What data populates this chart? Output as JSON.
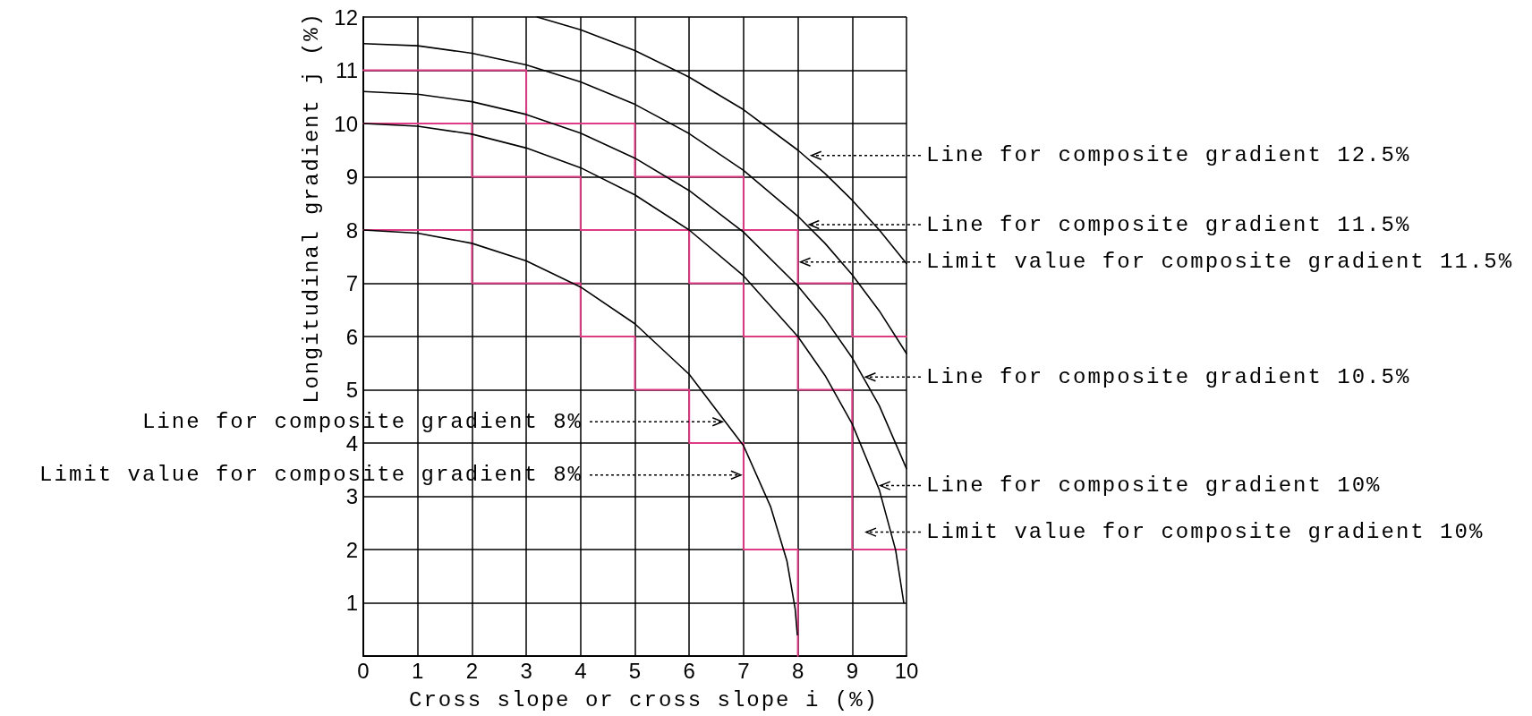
{
  "chart_data": {
    "type": "line",
    "xlabel": "Cross slope or cross slope i (%)",
    "ylabel": "Longitudinal gradient j (%)",
    "xlim": [
      0,
      10
    ],
    "ylim": [
      0,
      12
    ],
    "xticks": [
      0,
      1,
      2,
      3,
      4,
      5,
      6,
      7,
      8,
      9,
      10
    ],
    "yticks": [
      {
        "value": 0,
        "label": null
      },
      1,
      2,
      3,
      4,
      5,
      6,
      7,
      8,
      9,
      10,
      11,
      12
    ],
    "grid": true,
    "series": [
      {
        "color": "#000000",
        "x": [
          3.2,
          4,
          5,
          6,
          7,
          8,
          8.5,
          9,
          9.5,
          10
        ],
        "values": [
          12,
          11.76,
          11.37,
          10.87,
          10.26,
          9.5,
          9.06,
          8.56,
          8.0,
          7.37
        ]
      },
      {
        "color": "#000000",
        "x": [
          0,
          1,
          2,
          3,
          4,
          5,
          6,
          7,
          8,
          8.5,
          9,
          9.5,
          10
        ],
        "values": [
          11.5,
          11.46,
          11.32,
          11.1,
          10.78,
          10.36,
          9.81,
          9.12,
          8.26,
          7.75,
          7.16,
          6.48,
          5.68
        ]
      },
      {
        "color": "#000000",
        "x": [
          0,
          1,
          2,
          3,
          4,
          5,
          6,
          7,
          8,
          8.5,
          9,
          9.5,
          10
        ],
        "values": [
          10.6,
          10.55,
          10.41,
          10.17,
          9.82,
          9.35,
          8.74,
          7.96,
          6.95,
          6.33,
          5.6,
          4.7,
          3.52
        ]
      },
      {
        "color": "#000000",
        "x": [
          0,
          1,
          2,
          3,
          4,
          5,
          6,
          7,
          8,
          8.5,
          9,
          9.5,
          9.8,
          9.95
        ],
        "values": [
          10,
          9.95,
          9.8,
          9.54,
          9.17,
          8.66,
          8,
          7.14,
          6,
          5.27,
          4.36,
          3.12,
          1.99,
          1
        ]
      },
      {
        "color": "#000000",
        "x": [
          0,
          1,
          2,
          3,
          4,
          5,
          6,
          7,
          7.5,
          7.8,
          7.95,
          7.99
        ],
        "values": [
          8,
          7.94,
          7.75,
          7.42,
          6.93,
          6.24,
          5.29,
          3.95,
          2.8,
          1.78,
          0.89,
          0.4
        ]
      },
      {
        "type": "step",
        "color": "#dd3b84",
        "x": [
          0,
          3,
          5,
          7,
          8,
          9,
          10
        ],
        "values": [
          11,
          10,
          9,
          8,
          7,
          6,
          6
        ]
      },
      {
        "type": "step",
        "color": "#dd3b84",
        "x": [
          0,
          2,
          4,
          6,
          7,
          8,
          9,
          10
        ],
        "values": [
          10,
          9,
          8,
          7,
          6,
          5,
          2,
          2
        ]
      },
      {
        "type": "step",
        "color": "#dd3b84",
        "x": [
          0,
          2,
          4,
          5,
          6,
          7,
          8
        ],
        "values": [
          8,
          7,
          6,
          5,
          4,
          2,
          0
        ]
      }
    ],
    "annotations": [
      {
        "text": "Line for composite gradient 12.5%",
        "x": 8.2,
        "y": 9.4
      },
      {
        "text": "Line for composite gradient 11.5%",
        "x": 8.16,
        "y": 8.1
      },
      {
        "text": "Limit value for composite gradient 11.5%",
        "x": 8,
        "y": 7.4
      },
      {
        "text": "Line for composite gradient 10.5%",
        "x": 9.2,
        "y": 5.24
      },
      {
        "text": "Line for composite gradient 8%",
        "x": 6.66,
        "y": 4.4
      },
      {
        "text": "Limit value for composite gradient 8%",
        "x": 7,
        "y": 3.4
      },
      {
        "text": "Line for composite gradient 10%",
        "x": 9.47,
        "y": 3.2
      },
      "Limit value for composite gradient 10%"
    ]
  }
}
